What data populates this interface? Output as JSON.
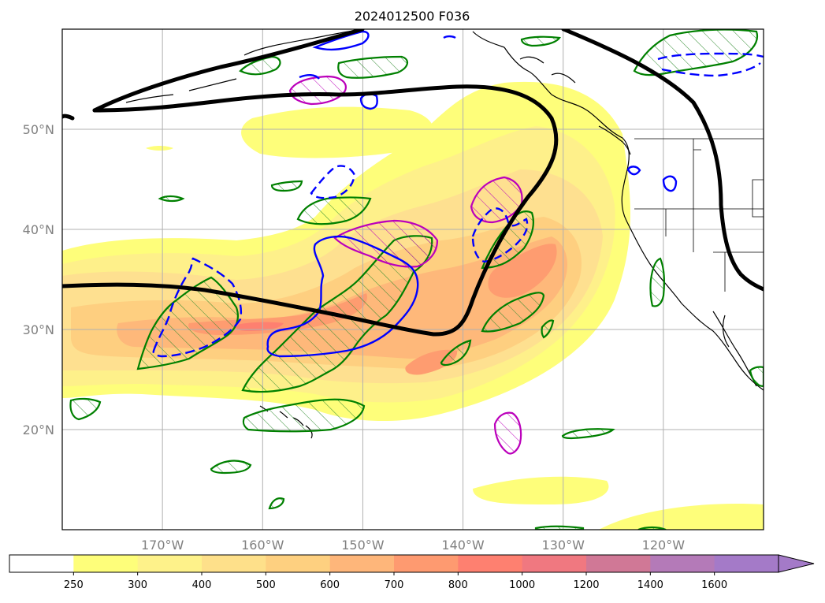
{
  "title": "2024012500 F036",
  "map": {
    "lat_labels": [
      {
        "text": "50°N",
        "lat": 50
      },
      {
        "text": "40°N",
        "lat": 40
      },
      {
        "text": "30°N",
        "lat": 30
      },
      {
        "text": "20°N",
        "lat": 20
      }
    ],
    "lon_labels": [
      {
        "text": "170°W",
        "lon": -170
      },
      {
        "text": "160°W",
        "lon": -160
      },
      {
        "text": "150°W",
        "lon": -150
      },
      {
        "text": "140°W",
        "lon": -140
      },
      {
        "text": "130°W",
        "lon": -130
      },
      {
        "text": "120°W",
        "lon": -120
      }
    ],
    "extent": {
      "lon_min": -180,
      "lon_max": -110,
      "lat_min": 10,
      "lat_max": 60
    }
  },
  "colorbar": {
    "levels": [
      "250",
      "300",
      "400",
      "500",
      "600",
      "700",
      "800",
      "1000",
      "1200",
      "1400",
      "1600"
    ],
    "colors": [
      "#ffffff",
      "#fefe7a",
      "#fef28a",
      "#fee08a",
      "#fed080",
      "#feb67a",
      "#fe9a70",
      "#fe8070",
      "#f07880",
      "#d07896",
      "#b47ab8",
      "#a47ac8"
    ],
    "extend": "max"
  },
  "colors": {
    "contour_black": "#000000",
    "contour_green": "#008000",
    "contour_blue": "#0000ff",
    "contour_magenta": "#bb00bb",
    "grid": "#b0b0b0",
    "frame": "#000000"
  }
}
